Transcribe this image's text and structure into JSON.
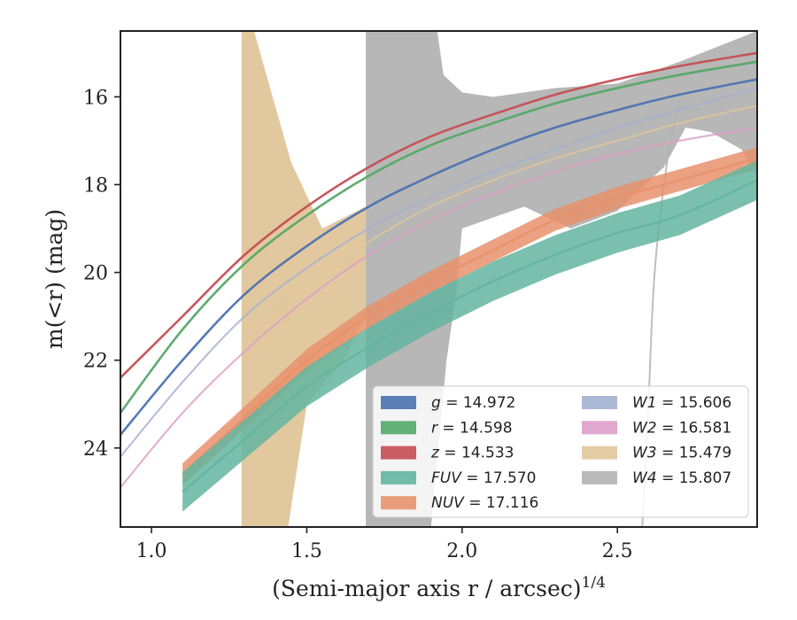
{
  "chart_data": {
    "type": "line",
    "title": "",
    "xlabel": "(Semi-major axis r / arcsec)",
    "xlabel_exponent": "1/4",
    "ylabel": "m(<r) (mag)",
    "xlim": [
      0.9,
      2.95
    ],
    "ylim": [
      25.8,
      14.5
    ],
    "y_inverted": true,
    "x_ticks": [
      1.0,
      1.5,
      2.0,
      2.5
    ],
    "x_tick_labels": [
      "1.0",
      "1.5",
      "2.0",
      "2.5"
    ],
    "y_ticks": [
      16,
      18,
      20,
      22,
      24
    ],
    "y_tick_labels": [
      "16",
      "18",
      "20",
      "22",
      "24"
    ],
    "grid": false,
    "legend_position": "lower-right",
    "legend_columns": 2,
    "series": [
      {
        "band": "g",
        "value": "14.972",
        "label": "g = 14.972",
        "color": "#4c72b0",
        "x": [
          0.9,
          1.1,
          1.3,
          1.5,
          1.7,
          1.9,
          2.1,
          2.3,
          2.5,
          2.7,
          2.95
        ],
        "y": [
          23.7,
          22.0,
          20.5,
          19.4,
          18.5,
          17.8,
          17.2,
          16.7,
          16.3,
          15.95,
          15.6
        ]
      },
      {
        "band": "r",
        "value": "14.598",
        "label": "r = 14.598",
        "color": "#55a868",
        "x": [
          0.9,
          1.1,
          1.3,
          1.5,
          1.7,
          1.9,
          2.1,
          2.3,
          2.5,
          2.7,
          2.95
        ],
        "y": [
          23.2,
          21.3,
          19.8,
          18.7,
          17.8,
          17.1,
          16.6,
          16.15,
          15.8,
          15.5,
          15.2
        ]
      },
      {
        "band": "z",
        "value": "14.533",
        "label": "z = 14.533",
        "color": "#c44e52",
        "x": [
          0.9,
          1.1,
          1.3,
          1.5,
          1.7,
          1.9,
          2.1,
          2.3,
          2.5,
          2.7,
          2.95
        ],
        "y": [
          22.4,
          21.0,
          19.6,
          18.5,
          17.6,
          16.9,
          16.4,
          15.95,
          15.6,
          15.3,
          15.0
        ]
      },
      {
        "band": "FUV",
        "value": "17.570",
        "label": "FUV = 17.570",
        "color": "#64b5a0",
        "band_width": 0.45,
        "x": [
          1.1,
          1.3,
          1.5,
          1.7,
          1.9,
          2.1,
          2.3,
          2.5,
          2.7,
          2.95
        ],
        "y": [
          25.0,
          23.8,
          22.6,
          21.7,
          20.9,
          20.2,
          19.6,
          19.1,
          18.7,
          17.9
        ]
      },
      {
        "band": "NUV",
        "value": "17.116",
        "label": "NUV = 17.116",
        "color": "#e8926c",
        "band_width": 0.25,
        "x": [
          1.1,
          1.3,
          1.5,
          1.7,
          1.9,
          2.1,
          2.3,
          2.5,
          2.7,
          2.95
        ],
        "y": [
          24.6,
          23.3,
          22.0,
          21.0,
          20.2,
          19.5,
          18.8,
          18.3,
          17.9,
          17.4
        ]
      },
      {
        "band": "W1",
        "value": "15.606",
        "label": "W1 = 15.606",
        "color": "#a3b1d1",
        "x": [
          0.9,
          1.1,
          1.3,
          1.5,
          1.7,
          1.9,
          2.1,
          2.3,
          2.5,
          2.7,
          2.95
        ],
        "y": [
          24.2,
          22.5,
          21.0,
          19.9,
          19.0,
          18.3,
          17.7,
          17.2,
          16.7,
          16.3,
          15.8
        ]
      },
      {
        "band": "W2",
        "value": "16.581",
        "label": "W2 = 16.581",
        "color": "#de9ec8",
        "x": [
          0.9,
          1.1,
          1.3,
          1.5,
          1.7,
          1.9,
          2.1,
          2.3,
          2.5,
          2.7,
          2.95
        ],
        "y": [
          24.9,
          23.2,
          21.8,
          20.6,
          19.6,
          18.8,
          18.2,
          17.7,
          17.3,
          17.0,
          16.7
        ]
      },
      {
        "band": "W3",
        "value": "15.479",
        "label": "W3 = 15.479",
        "color": "#e0c59a",
        "x": [
          1.3,
          1.5,
          1.7,
          1.9,
          2.1,
          2.3,
          2.5,
          2.7,
          2.95
        ],
        "y": [
          21.6,
          20.3,
          19.3,
          18.5,
          17.9,
          17.4,
          17.0,
          16.6,
          16.2
        ]
      },
      {
        "band": "W4",
        "value": "15.807",
        "label": "W4 = 15.807",
        "color": "#b3b3b3",
        "x": [
          2.58,
          2.6,
          2.62,
          2.66,
          2.7
        ],
        "y": [
          25.8,
          23.0,
          20.0,
          17.5,
          16.1
        ]
      }
    ],
    "uncertainty_regions": [
      {
        "band": "W3",
        "color": "#e0c59a",
        "x": [
          1.29,
          1.33,
          1.45,
          1.55,
          1.69,
          1.69,
          1.62,
          1.5,
          1.44,
          1.29
        ],
        "y1": [
          14.5,
          14.5,
          17.5,
          19.0,
          18.5,
          21.0,
          22.0,
          23.0,
          25.8,
          25.8
        ]
      },
      {
        "band": "W4",
        "color": "#b3b3b3",
        "top_x": [
          1.69,
          1.92,
          1.94,
          2.0,
          2.1,
          2.3,
          2.5,
          2.7,
          2.95
        ],
        "top_y": [
          14.5,
          14.5,
          15.5,
          15.9,
          16.0,
          15.8,
          15.7,
          15.2,
          14.5
        ],
        "bottom_x": [
          2.95,
          2.9,
          2.8,
          2.72,
          2.65,
          2.5,
          2.35,
          2.2,
          2.0,
          1.98,
          1.95,
          1.9,
          1.69
        ],
        "bottom_y": [
          17.8,
          17.2,
          16.8,
          16.7,
          17.6,
          18.6,
          19.0,
          18.5,
          19.0,
          20.5,
          22.0,
          25.8,
          25.8
        ]
      }
    ]
  }
}
